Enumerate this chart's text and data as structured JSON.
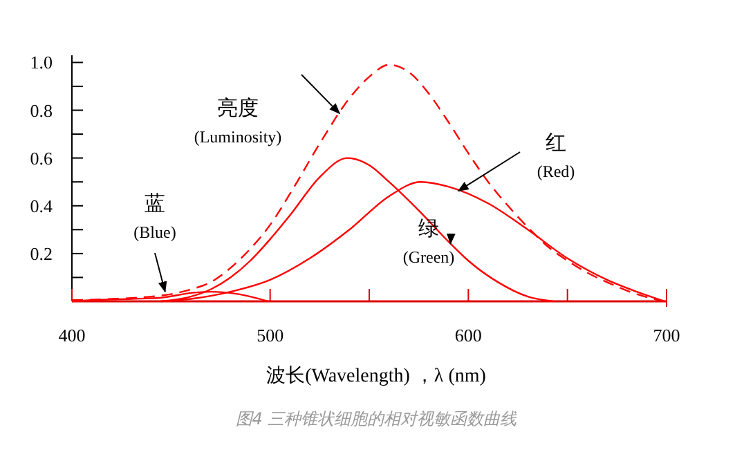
{
  "chart_data": {
    "type": "line",
    "xlabel": "波长(Wavelength) ，λ (nm)",
    "annotations": [
      "图4 三种锥状细胞的相对视敏函数曲线"
    ],
    "xlim": [
      400,
      700
    ],
    "ylim": [
      0,
      1.03
    ],
    "xticks": [
      {
        "value": 400,
        "label": "400"
      },
      {
        "value": 500,
        "label": "500"
      },
      {
        "value": 550,
        "label": null
      },
      {
        "value": 600,
        "label": "600"
      },
      {
        "value": 650,
        "label": null
      },
      {
        "value": 700,
        "label": "700"
      }
    ],
    "yticks": [
      {
        "value": 0.1,
        "label": null
      },
      0.2,
      {
        "value": 0.3,
        "label": null
      },
      0.4,
      {
        "value": 0.5,
        "label": null
      },
      0.6,
      {
        "value": 0.7,
        "label": null
      },
      0.8,
      {
        "value": 0.9,
        "label": null
      },
      {
        "value": 1.0,
        "label": "1.0"
      }
    ],
    "grid": false,
    "marker": "none",
    "series": [
      {
        "name": "亮度\n(Luminosity)",
        "color": "#ff0000",
        "line_style": "dashed",
        "x": [
          400,
          420,
          440,
          450,
          460,
          470,
          480,
          490,
          500,
          510,
          525,
          540,
          550,
          560,
          570,
          580,
          590,
          600,
          610,
          620,
          630,
          640,
          650,
          660,
          670,
          685,
          699
        ],
        "values": [
          0.005,
          0.01,
          0.02,
          0.03,
          0.05,
          0.08,
          0.14,
          0.22,
          0.32,
          0.45,
          0.66,
          0.85,
          0.94,
          0.99,
          0.96,
          0.87,
          0.75,
          0.62,
          0.5,
          0.4,
          0.31,
          0.23,
          0.17,
          0.12,
          0.08,
          0.03,
          0
        ]
      },
      {
        "name": "红\n(Red)",
        "color": "#ff0000",
        "line_style": "solid",
        "x": [
          445,
          460,
          480,
          500,
          520,
          540,
          560,
          576,
          590,
          610,
          630,
          650,
          670,
          685,
          699
        ],
        "values": [
          0,
          0.01,
          0.04,
          0.09,
          0.18,
          0.3,
          0.44,
          0.5,
          0.48,
          0.41,
          0.3,
          0.18,
          0.09,
          0.04,
          0
        ]
      },
      {
        "name": "绿\n(Green)",
        "color": "#ff0000",
        "line_style": "solid",
        "x": [
          445,
          460,
          470,
          480,
          490,
          500,
          510,
          525,
          539,
          550,
          560,
          575,
          590,
          600,
          615,
          630,
          643
        ],
        "values": [
          0,
          0.02,
          0.05,
          0.1,
          0.17,
          0.26,
          0.36,
          0.52,
          0.6,
          0.57,
          0.5,
          0.38,
          0.25,
          0.17,
          0.08,
          0.02,
          0
        ]
      },
      {
        "name": "蓝\n(Blue)",
        "color": "#ff0000",
        "line_style": "solid",
        "x": [
          400,
          410,
          430,
          445,
          460,
          470,
          480,
          490,
          499
        ],
        "values": [
          0,
          0.005,
          0.01,
          0.015,
          0.035,
          0.04,
          0.035,
          0.02,
          0
        ]
      }
    ]
  }
}
